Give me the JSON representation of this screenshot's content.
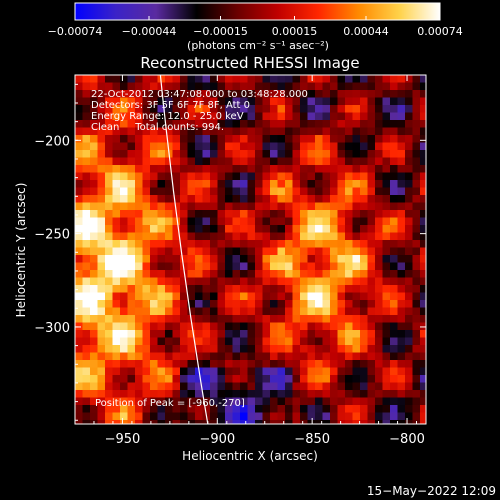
{
  "colorbar": {
    "ticks": [
      "-0.00074",
      "-0.00044",
      "-0.00015",
      "0.00015",
      "0.00044",
      "0.00074"
    ],
    "tick_values": [
      -0.00074,
      -0.00044,
      -0.00015,
      0.00015,
      0.00044,
      0.00074
    ],
    "range": [
      -0.00074,
      0.00074
    ],
    "units": "(photons cm⁻² s⁻¹ asec⁻²)",
    "colors": [
      "#0000ff",
      "#3a22c8",
      "#5a2aa0",
      "#000000",
      "#6a0000",
      "#c00000",
      "#ff2600",
      "#ff8a00",
      "#ffd24a",
      "#ffffff"
    ]
  },
  "chart_data": {
    "type": "heatmap",
    "title": "Reconstructed RHESSI Image",
    "xlabel": "Heliocentric X (arcsec)",
    "ylabel": "Heliocentric Y (arcsec)",
    "xlim": [
      -975,
      -790
    ],
    "ylim": [
      -352,
      -165
    ],
    "x_ticks": [
      -950,
      -900,
      -850,
      -800
    ],
    "y_ticks": [
      -200,
      -250,
      -300
    ],
    "x_tick_labels": [
      "−950",
      "−900",
      "−850",
      "−800"
    ],
    "y_tick_labels": [
      "−200",
      "−250",
      "−300"
    ],
    "info_lines": [
      "22-Oct-2012 03:47:08.000 to 03:48:28.000",
      "Detectors: 3F 5F 6F 7F 8F, Att 0",
      "Energy Range: 12.0 - 25.0 keV",
      "Clean     Total counts: 994."
    ],
    "peak_text": "Position of Peak = [-960,-270]",
    "peak": [
      -960,
      -270
    ],
    "sources": [
      {
        "x": -960,
        "y": -270,
        "peak": 0.00074
      },
      {
        "x": -845,
        "y": -268,
        "peak": 0.0006
      }
    ],
    "limb": [
      [
        -930,
        -165
      ],
      [
        -905,
        -352
      ]
    ],
    "grid": false
  },
  "footer": {
    "date": "15−May−2022 12:09"
  }
}
